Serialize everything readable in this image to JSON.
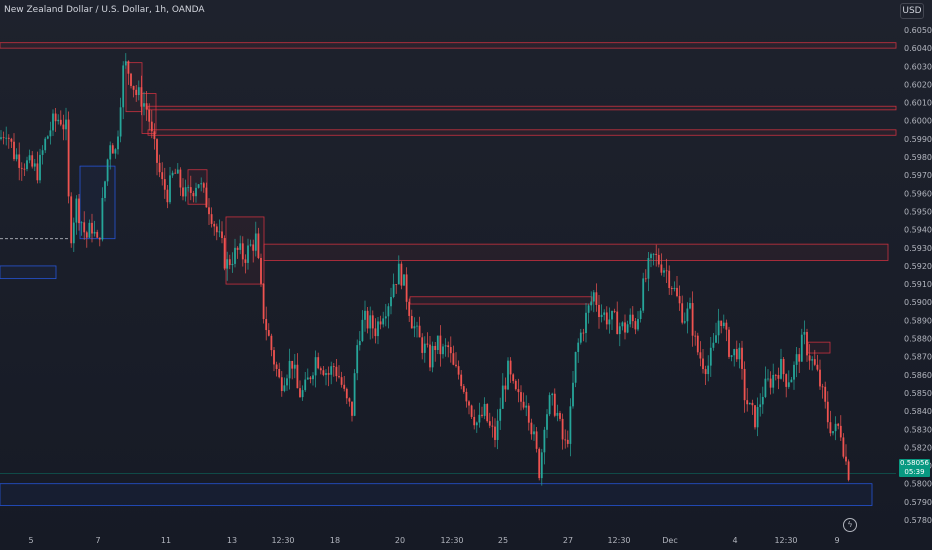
{
  "header": {
    "symbol_title": "New Zealand Dollar / U.S. Dollar, 1h, OANDA",
    "currency_button": "USD"
  },
  "last_price": {
    "value": "0.58056",
    "countdown": "05:39"
  },
  "icons": {
    "bolt": "lightning-icon"
  },
  "colors": {
    "background": "#1e222d",
    "bull": "#26a69a",
    "bear": "#ef5350",
    "zone_red": "#f23645",
    "zone_blue": "#2962ff",
    "last_price": "#089981"
  },
  "chart_data": {
    "type": "candlestick",
    "title": "New Zealand Dollar / U.S. Dollar, 1h, OANDA",
    "ylim": [
      0.5775,
      0.6055
    ],
    "y_ticks": [
      "0.60500",
      "0.60400",
      "0.60300",
      "0.60200",
      "0.60100",
      "0.60000",
      "0.59900",
      "0.59800",
      "0.59700",
      "0.59600",
      "0.59500",
      "0.59400",
      "0.59300",
      "0.59200",
      "0.59100",
      "0.59000",
      "0.58900",
      "0.58800",
      "0.58700",
      "0.58600",
      "0.58500",
      "0.58400",
      "0.58300",
      "0.58200",
      "0.58100",
      "0.58000",
      "0.57900",
      "0.57800"
    ],
    "x_ticks": [
      "5",
      "7",
      "11",
      "13",
      "12:30",
      "18",
      "20",
      "12:30",
      "25",
      "27",
      "12:30",
      "Dec",
      "4",
      "12:30",
      "9"
    ],
    "price_path": [
      [
        0,
        0.599
      ],
      [
        6,
        0.5996
      ],
      [
        14,
        0.5982
      ],
      [
        22,
        0.5978
      ],
      [
        30,
        0.5975
      ],
      [
        38,
        0.5972
      ],
      [
        45,
        0.5988
      ],
      [
        52,
        0.5998
      ],
      [
        60,
        0.6002
      ],
      [
        66,
        0.5995
      ],
      [
        70,
        0.5934
      ],
      [
        76,
        0.5955
      ],
      [
        82,
        0.5944
      ],
      [
        86,
        0.5935
      ],
      [
        92,
        0.5942
      ],
      [
        98,
        0.593
      ],
      [
        104,
        0.5962
      ],
      [
        110,
        0.599
      ],
      [
        116,
        0.5982
      ],
      [
        120,
        0.601
      ],
      [
        124,
        0.6032
      ],
      [
        130,
        0.6026
      ],
      [
        136,
        0.6015
      ],
      [
        142,
        0.6012
      ],
      [
        148,
        0.6005
      ],
      [
        152,
        0.599
      ],
      [
        158,
        0.5975
      ],
      [
        162,
        0.5965
      ],
      [
        168,
        0.596
      ],
      [
        174,
        0.5972
      ],
      [
        180,
        0.5965
      ],
      [
        186,
        0.5958
      ],
      [
        192,
        0.5962
      ],
      [
        198,
        0.5968
      ],
      [
        204,
        0.5958
      ],
      [
        210,
        0.5952
      ],
      [
        216,
        0.594
      ],
      [
        222,
        0.593
      ],
      [
        226,
        0.592
      ],
      [
        232,
        0.5925
      ],
      [
        238,
        0.5928
      ],
      [
        244,
        0.5925
      ],
      [
        250,
        0.593
      ],
      [
        256,
        0.5935
      ],
      [
        260,
        0.591
      ],
      [
        264,
        0.5892
      ],
      [
        268,
        0.5882
      ],
      [
        274,
        0.5868
      ],
      [
        280,
        0.5855
      ],
      [
        286,
        0.5862
      ],
      [
        292,
        0.5868
      ],
      [
        298,
        0.585
      ],
      [
        304,
        0.585
      ],
      [
        310,
        0.586
      ],
      [
        316,
        0.587
      ],
      [
        322,
        0.5866
      ],
      [
        328,
        0.586
      ],
      [
        334,
        0.5865
      ],
      [
        340,
        0.5858
      ],
      [
        346,
        0.5845
      ],
      [
        352,
        0.584
      ],
      [
        358,
        0.5882
      ],
      [
        364,
        0.589
      ],
      [
        370,
        0.5888
      ],
      [
        376,
        0.5885
      ],
      [
        382,
        0.5895
      ],
      [
        388,
        0.59
      ],
      [
        394,
        0.5912
      ],
      [
        400,
        0.5918
      ],
      [
        406,
        0.5905
      ],
      [
        412,
        0.589
      ],
      [
        418,
        0.588
      ],
      [
        424,
        0.5875
      ],
      [
        430,
        0.5868
      ],
      [
        436,
        0.5878
      ],
      [
        442,
        0.5872
      ],
      [
        448,
        0.5875
      ],
      [
        454,
        0.5862
      ],
      [
        460,
        0.586
      ],
      [
        466,
        0.585
      ],
      [
        472,
        0.584
      ],
      [
        478,
        0.5832
      ],
      [
        484,
        0.584
      ],
      [
        490,
        0.583
      ],
      [
        496,
        0.5825
      ],
      [
        502,
        0.585
      ],
      [
        508,
        0.5862
      ],
      [
        514,
        0.585
      ],
      [
        520,
        0.5845
      ],
      [
        526,
        0.5848
      ],
      [
        532,
        0.583
      ],
      [
        536,
        0.5818
      ],
      [
        540,
        0.5805
      ],
      [
        544,
        0.5835
      ],
      [
        550,
        0.5845
      ],
      [
        556,
        0.5842
      ],
      [
        562,
        0.5825
      ],
      [
        566,
        0.582
      ],
      [
        570,
        0.5835
      ],
      [
        576,
        0.5872
      ],
      [
        582,
        0.5885
      ],
      [
        588,
        0.5895
      ],
      [
        594,
        0.5905
      ],
      [
        600,
        0.5895
      ],
      [
        606,
        0.5892
      ],
      [
        612,
        0.589
      ],
      [
        618,
        0.5888
      ],
      [
        624,
        0.5885
      ],
      [
        630,
        0.589
      ],
      [
        636,
        0.5888
      ],
      [
        642,
        0.5905
      ],
      [
        648,
        0.5918
      ],
      [
        654,
        0.5925
      ],
      [
        660,
        0.5922
      ],
      [
        666,
        0.5918
      ],
      [
        672,
        0.591
      ],
      [
        678,
        0.59
      ],
      [
        684,
        0.5892
      ],
      [
        690,
        0.5895
      ],
      [
        696,
        0.5875
      ],
      [
        702,
        0.5868
      ],
      [
        708,
        0.5865
      ],
      [
        714,
        0.5875
      ],
      [
        720,
        0.5895
      ],
      [
        726,
        0.588
      ],
      [
        732,
        0.587
      ],
      [
        738,
        0.5875
      ],
      [
        744,
        0.585
      ],
      [
        750,
        0.584
      ],
      [
        756,
        0.5835
      ],
      [
        762,
        0.585
      ],
      [
        768,
        0.5855
      ],
      [
        774,
        0.586
      ],
      [
        780,
        0.5865
      ],
      [
        786,
        0.5858
      ],
      [
        792,
        0.586
      ],
      [
        798,
        0.587
      ],
      [
        804,
        0.588
      ],
      [
        810,
        0.587
      ],
      [
        816,
        0.5862
      ],
      [
        820,
        0.5855
      ],
      [
        824,
        0.5845
      ],
      [
        828,
        0.5835
      ],
      [
        834,
        0.5828
      ],
      [
        840,
        0.5832
      ],
      [
        846,
        0.5812
      ],
      [
        849,
        0.5806
      ]
    ],
    "zones": [
      {
        "type": "resistance",
        "color": "red",
        "x0": 0,
        "x1": 932,
        "y0": 0.6043,
        "y1": 0.604
      },
      {
        "type": "resistance",
        "color": "red",
        "x0": 148,
        "x1": 932,
        "y0": 0.6008,
        "y1": 0.6006
      },
      {
        "type": "resistance",
        "color": "red",
        "x0": 148,
        "x1": 932,
        "y0": 0.5995,
        "y1": 0.5992
      },
      {
        "type": "resistance",
        "color": "red",
        "x0": 264,
        "x1": 888,
        "y0": 0.5932,
        "y1": 0.5923
      },
      {
        "type": "resistance",
        "color": "red",
        "x0": 410,
        "x1": 592,
        "y0": 0.5903,
        "y1": 0.5899
      },
      {
        "type": "support",
        "color": "blue",
        "x0": 0,
        "x1": 872,
        "y0": 0.58,
        "y1": 0.5788
      },
      {
        "type": "support",
        "color": "blue",
        "x0": 0,
        "x1": 56,
        "y0": 0.592,
        "y1": 0.5913
      },
      {
        "type": "demand",
        "color": "blue",
        "x0": 80,
        "x1": 115,
        "y0": 0.5975,
        "y1": 0.5935
      },
      {
        "type": "block",
        "color": "red",
        "x0": 226,
        "x1": 264,
        "y0": 0.5947,
        "y1": 0.591
      },
      {
        "type": "block",
        "color": "red",
        "x0": 126,
        "x1": 142,
        "y0": 0.6032,
        "y1": 0.6005
      },
      {
        "type": "block",
        "color": "red",
        "x0": 142,
        "x1": 156,
        "y0": 0.6015,
        "y1": 0.5993
      },
      {
        "type": "block",
        "color": "red",
        "x0": 188,
        "x1": 207,
        "y0": 0.5973,
        "y1": 0.5954
      },
      {
        "type": "block",
        "color": "red",
        "x0": 808,
        "x1": 830,
        "y0": 0.5878,
        "y1": 0.5872
      }
    ]
  }
}
